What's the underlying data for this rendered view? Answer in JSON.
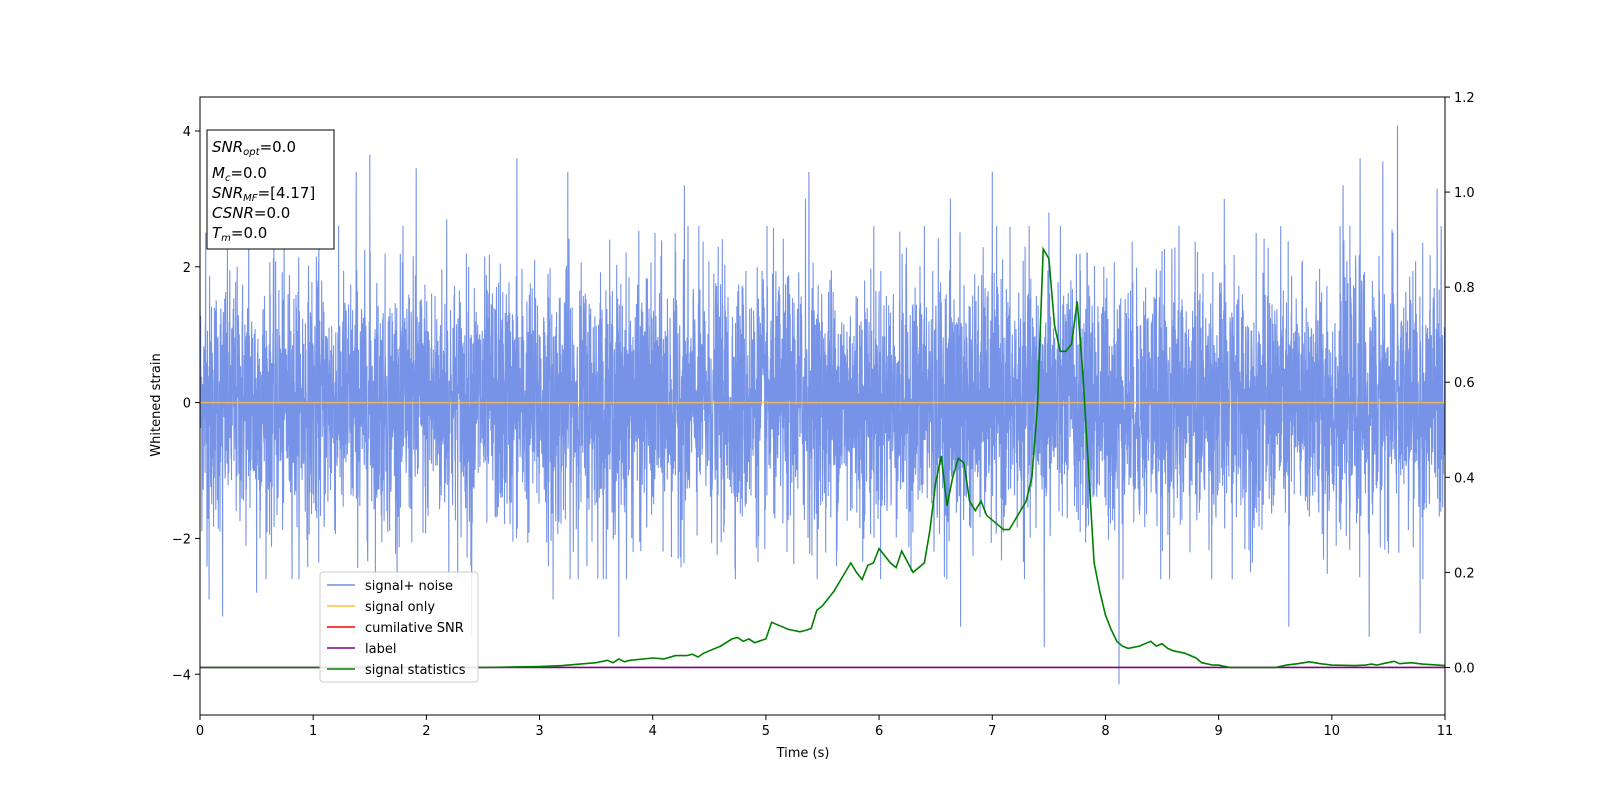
{
  "chart_data": {
    "type": "line",
    "xlabel": "Time (s)",
    "ylabel": "Whitened strain",
    "xlim": [
      0,
      11
    ],
    "ylim": [
      -4.6,
      4.5
    ],
    "y2lim": [
      -0.1,
      1.2
    ],
    "xticks": [
      "0",
      "1",
      "2",
      "3",
      "4",
      "5",
      "6",
      "7",
      "8",
      "9",
      "10",
      "11"
    ],
    "yticks": [
      "4",
      "2",
      "0",
      "−2",
      "−4"
    ],
    "y2ticks": [
      "1.2",
      "1.0",
      "0.8",
      "0.6",
      "0.4",
      "0.2",
      "0.0"
    ],
    "grid": false,
    "legend_location": "lower-left",
    "colors": {
      "signal_noise": "#6f8de6",
      "signal_only": "#ffbf3f",
      "cumulative_snr": "#ff0000",
      "label": "#800080",
      "signal_statistics": "#008000"
    },
    "info_box": {
      "snr_opt": {
        "main": "SNR",
        "sub": "opt",
        "value": "=0.0"
      },
      "mc": {
        "main": "M",
        "sub": "c",
        "value": "=0.0"
      },
      "snr_mf": {
        "main": "SNR",
        "sub": "MF",
        "value": "=[4.17]"
      },
      "csnr": {
        "main": "CSNR",
        "value": "=0.0"
      },
      "tm": {
        "main": "T",
        "sub": "m",
        "value": "=0.0"
      }
    },
    "series": [
      {
        "name": "signal+ noise",
        "axis": "left",
        "description_range": [
          -4.15,
          4.08
        ],
        "noise_std": 1.0,
        "spikes": [
          [
            0.05,
            2.5
          ],
          [
            0.08,
            -2.9
          ],
          [
            0.2,
            -3.15
          ],
          [
            0.43,
            2.8
          ],
          [
            0.5,
            -2.8
          ],
          [
            1.05,
            3.1
          ],
          [
            1.38,
            3.4
          ],
          [
            1.5,
            3.65
          ],
          [
            1.91,
            3.45
          ],
          [
            2.18,
            2.7
          ],
          [
            2.4,
            -3.45
          ],
          [
            2.8,
            3.6
          ],
          [
            3.12,
            -2.9
          ],
          [
            3.25,
            3.4
          ],
          [
            3.7,
            -3.45
          ],
          [
            4.28,
            3.2
          ],
          [
            5.35,
            3.0
          ],
          [
            5.38,
            3.4
          ],
          [
            6.4,
            2.6
          ],
          [
            6.63,
            3.0
          ],
          [
            6.72,
            -3.3
          ],
          [
            7.0,
            3.4
          ],
          [
            7.46,
            -3.6
          ],
          [
            7.5,
            2.8
          ],
          [
            8.12,
            -4.15
          ],
          [
            8.65,
            2.6
          ],
          [
            9.05,
            3.0
          ],
          [
            9.62,
            -3.3
          ],
          [
            10.1,
            3.2
          ],
          [
            10.25,
            3.6
          ],
          [
            10.33,
            -3.45
          ],
          [
            10.45,
            3.55
          ],
          [
            10.58,
            4.08
          ],
          [
            10.78,
            -3.4
          ],
          [
            10.93,
            3.15
          ]
        ]
      },
      {
        "name": "signal only",
        "axis": "left",
        "x": [
          0,
          11
        ],
        "y": [
          0,
          0
        ]
      },
      {
        "name": "cumilative SNR",
        "axis": "left",
        "x": [],
        "y": []
      },
      {
        "name": "label",
        "axis": "right",
        "x": [
          0,
          11
        ],
        "y": [
          0.0,
          0.0
        ]
      },
      {
        "name": "signal statistics",
        "axis": "right",
        "x": [
          0,
          0.5,
          1.0,
          1.5,
          2.0,
          2.5,
          3.0,
          3.2,
          3.5,
          3.6,
          3.65,
          3.7,
          3.75,
          3.8,
          4.0,
          4.1,
          4.2,
          4.3,
          4.35,
          4.4,
          4.45,
          4.5,
          4.6,
          4.7,
          4.75,
          4.8,
          4.85,
          4.9,
          5.0,
          5.05,
          5.1,
          5.2,
          5.3,
          5.35,
          5.4,
          5.45,
          5.5,
          5.6,
          5.65,
          5.75,
          5.8,
          5.85,
          5.9,
          5.95,
          6.0,
          6.1,
          6.15,
          6.2,
          6.3,
          6.4,
          6.45,
          6.5,
          6.55,
          6.6,
          6.65,
          6.7,
          6.75,
          6.8,
          6.85,
          6.9,
          6.95,
          7.05,
          7.1,
          7.15,
          7.2,
          7.25,
          7.3,
          7.35,
          7.4,
          7.45,
          7.5,
          7.55,
          7.6,
          7.65,
          7.7,
          7.75,
          7.8,
          7.9,
          7.95,
          8.0,
          8.05,
          8.1,
          8.15,
          8.2,
          8.3,
          8.35,
          8.4,
          8.45,
          8.5,
          8.55,
          8.6,
          8.7,
          8.8,
          8.85,
          8.95,
          9.0,
          9.1,
          9.2,
          9.3,
          9.5,
          9.6,
          9.7,
          9.8,
          9.9,
          10.0,
          10.2,
          10.3,
          10.35,
          10.4,
          10.45,
          10.55,
          10.6,
          10.7,
          10.8,
          11.0
        ],
        "y": [
          0.0,
          0.0,
          0.0,
          0.0,
          0.0,
          0.0,
          0.002,
          0.004,
          0.01,
          0.015,
          0.01,
          0.018,
          0.012,
          0.015,
          0.02,
          0.018,
          0.025,
          0.025,
          0.028,
          0.022,
          0.03,
          0.035,
          0.045,
          0.06,
          0.063,
          0.055,
          0.06,
          0.052,
          0.06,
          0.095,
          0.09,
          0.08,
          0.075,
          0.078,
          0.082,
          0.12,
          0.13,
          0.16,
          0.18,
          0.22,
          0.2,
          0.185,
          0.215,
          0.22,
          0.25,
          0.22,
          0.21,
          0.245,
          0.2,
          0.22,
          0.29,
          0.39,
          0.445,
          0.34,
          0.4,
          0.44,
          0.43,
          0.35,
          0.33,
          0.35,
          0.32,
          0.3,
          0.29,
          0.29,
          0.31,
          0.33,
          0.35,
          0.4,
          0.55,
          0.88,
          0.86,
          0.72,
          0.665,
          0.665,
          0.68,
          0.77,
          0.62,
          0.22,
          0.16,
          0.11,
          0.08,
          0.055,
          0.045,
          0.04,
          0.045,
          0.05,
          0.055,
          0.045,
          0.05,
          0.04,
          0.035,
          0.03,
          0.02,
          0.01,
          0.005,
          0.005,
          0.0,
          0.0,
          0.0,
          0.0,
          0.005,
          0.008,
          0.012,
          0.008,
          0.005,
          0.004,
          0.005,
          0.007,
          0.005,
          0.008,
          0.013,
          0.008,
          0.01,
          0.007,
          0.004
        ]
      }
    ]
  }
}
